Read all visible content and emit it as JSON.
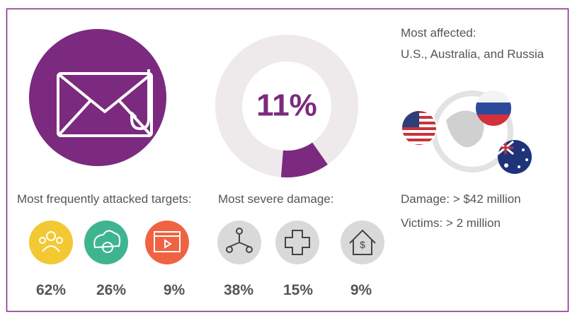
{
  "donut": {
    "value": 11,
    "label": "11%"
  },
  "affected": {
    "title": "Most affected:",
    "countries": "U.S., Australia, and Russia"
  },
  "targets": {
    "title": "Most frequently attacked targets:",
    "items": [
      "62%",
      "26%",
      "9%"
    ]
  },
  "damage": {
    "title": "Most severe damage:",
    "items": [
      "38%",
      "15%",
      "9%"
    ]
  },
  "stats": [
    "Damage: > $42 million",
    "Victims: > 2 million"
  ]
}
